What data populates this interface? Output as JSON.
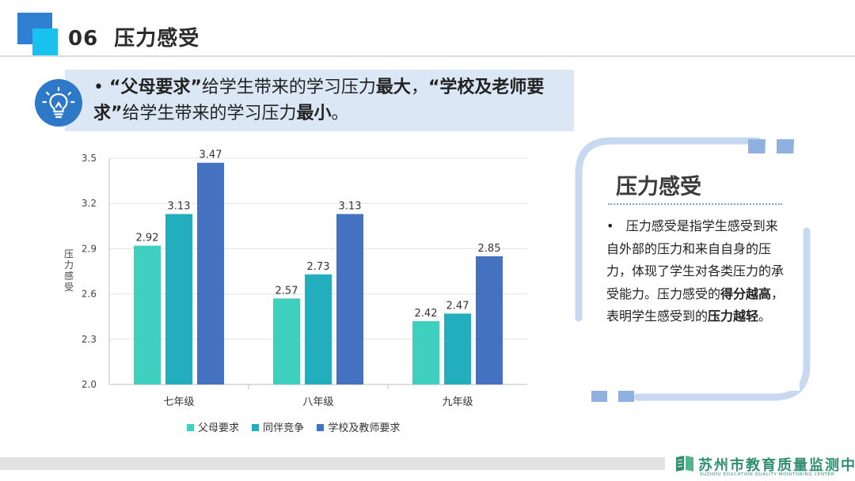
{
  "header": {
    "number": "06",
    "title": "压力感受"
  },
  "callout": {
    "bullet": "•",
    "q1": "“父母要求”",
    "t1": "给学生带来的学习压力",
    "b1": "最大",
    "comma": "，",
    "q2": "“学校及老师要求”",
    "t2": "给学生带来的学习压力",
    "b2": "最小",
    "end": "。"
  },
  "chart_data": {
    "type": "bar",
    "categories": [
      "七年级",
      "八年级",
      "九年级"
    ],
    "series": [
      {
        "name": "父母要求",
        "color": "#3ecfbe",
        "values": [
          2.92,
          2.57,
          2.42
        ]
      },
      {
        "name": "同伴竞争",
        "color": "#22aebc",
        "values": [
          3.13,
          2.73,
          2.47
        ]
      },
      {
        "name": "学校及教师要求",
        "color": "#4472c0",
        "values": [
          3.47,
          3.13,
          2.85
        ]
      }
    ],
    "yticks": [
      "3.5",
      "3.2",
      "2.9",
      "2.6",
      "2.3",
      "2.0"
    ],
    "ylim": [
      2.0,
      3.5
    ],
    "ylabel": "压力感受",
    "xlabel": "",
    "title": "",
    "grid": "horizontal",
    "legend": "bottom"
  },
  "panel": {
    "title": "压力感受",
    "bullet": "•",
    "p1": "压力感受是指学生感受到来自外部的压力和来自自身的压力，体现了学生对各类压力的承受能力。压力感受的",
    "b1": "得分越高",
    "p2": "，表明学生感受到的",
    "b2": "压力越轻",
    "p3": "。"
  },
  "footer": {
    "org_cn": "苏州市教育质量监测中心",
    "org_en": "SUZHOU EDUCATION QUALITY MONITORING CENTER"
  },
  "colors": {
    "accent_blue": "#2f7fd2",
    "accent_cyan": "#19c1ee",
    "callout_bg": "#dbe7f4",
    "quote_mark": "#8fb0e0",
    "frame_line": "#c7d9f1",
    "footer_green": "#2f8f6e"
  },
  "icons": {
    "callout": "lightbulb-icon",
    "panel_open": "quote-open-icon",
    "panel_close": "quote-close-icon",
    "footer": "book-logo-icon"
  }
}
